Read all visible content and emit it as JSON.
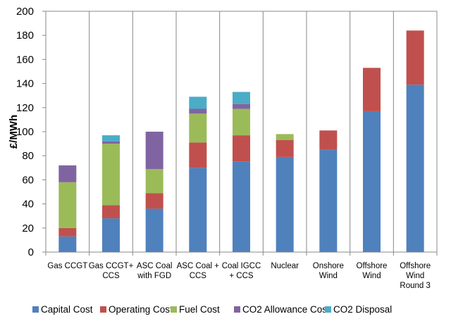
{
  "chart_data": {
    "type": "bar",
    "stacked": true,
    "title": "",
    "xlabel": "",
    "ylabel": "£/MWh",
    "ylim": [
      0,
      200
    ],
    "yticks": [
      0,
      20,
      40,
      60,
      80,
      100,
      120,
      140,
      160,
      180,
      200
    ],
    "grid": "vertical category dividers",
    "legend_position": "bottom",
    "categories": [
      [
        "Gas CCGT"
      ],
      [
        "Gas CCGT+",
        "CCS"
      ],
      [
        "ASC Coal",
        "with FGD"
      ],
      [
        "ASC Coal +",
        "CCS"
      ],
      [
        "Coal IGCC",
        "+ CCS"
      ],
      [
        "Nuclear"
      ],
      [
        "Onshore",
        "Wind"
      ],
      [
        "Offshore",
        "Wind"
      ],
      [
        "Offshore",
        "Wind",
        "Round 3"
      ]
    ],
    "series": [
      {
        "name": "Capital Cost",
        "color": "#4F81BD",
        "values": [
          13,
          28,
          36,
          70,
          75,
          79,
          85,
          117,
          139
        ]
      },
      {
        "name": "Operating Cost",
        "color": "#C0504D",
        "values": [
          7,
          11,
          13,
          21,
          22,
          14,
          16,
          36,
          45
        ]
      },
      {
        "name": "Fuel Cost",
        "color": "#9BBB59",
        "values": [
          38,
          51,
          20,
          24,
          22,
          5,
          0,
          0,
          0
        ]
      },
      {
        "name": "CO2 Allowance Cost",
        "color": "#8064A2",
        "values": [
          14,
          2,
          31,
          4,
          4,
          0,
          0,
          0,
          0
        ]
      },
      {
        "name": "CO2 Disposal",
        "color": "#4BACC6",
        "values": [
          0,
          5,
          0,
          10,
          10,
          0,
          0,
          0,
          0
        ]
      }
    ]
  }
}
